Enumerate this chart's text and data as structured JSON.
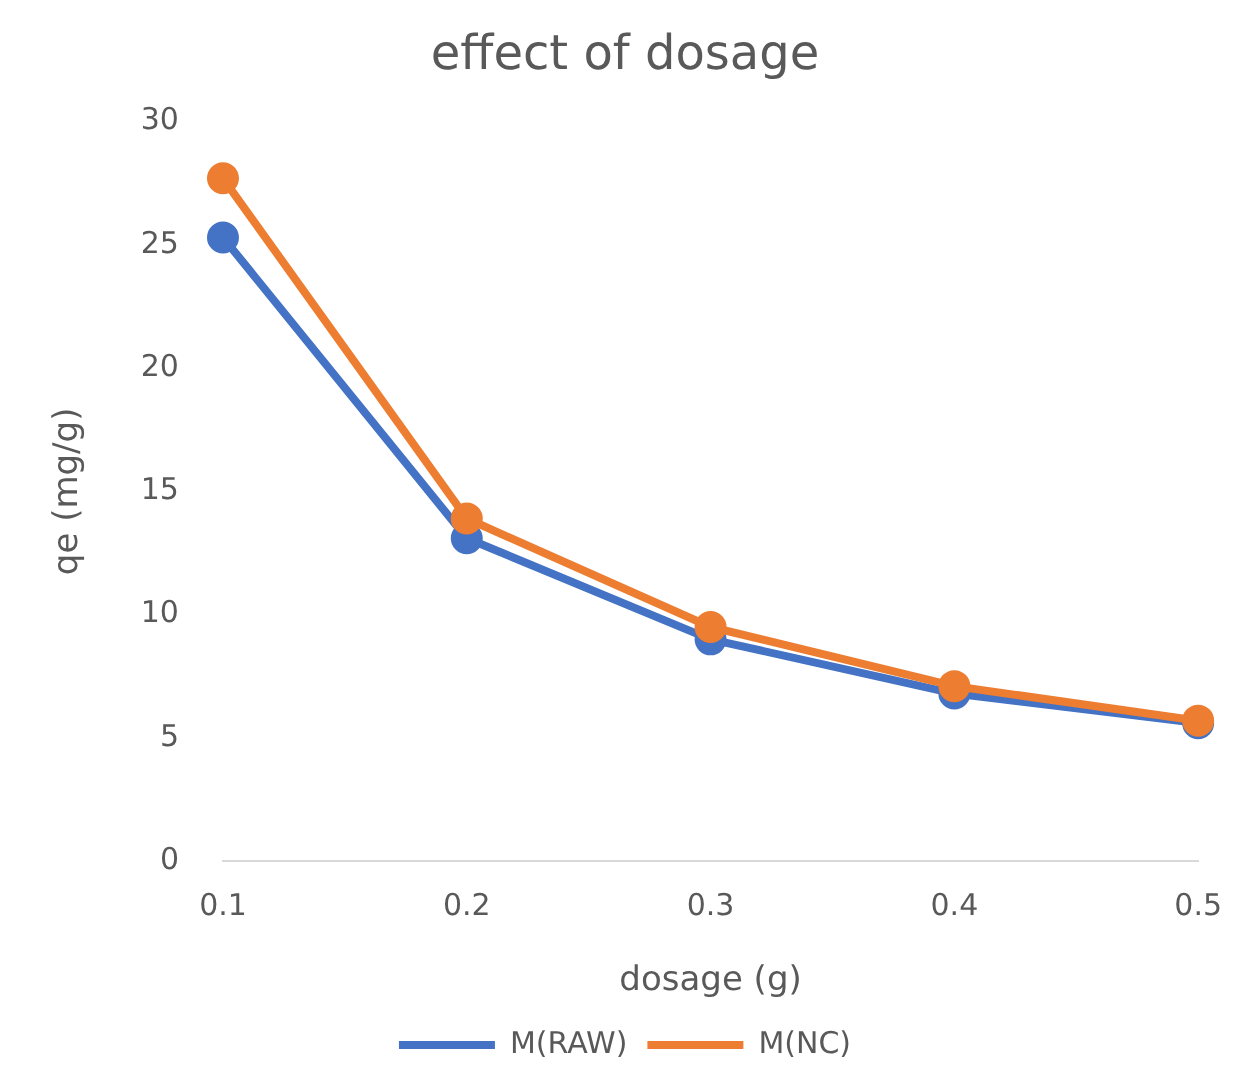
{
  "chart_data": {
    "type": "line",
    "title": "effect of dosage",
    "xlabel": "dosage (g)",
    "ylabel": "qe (mg/g)",
    "categories": [
      "0.1",
      "0.2",
      "0.3",
      "0.4",
      "0.5"
    ],
    "series": [
      {
        "name": "M(RAW)",
        "color": "#4472c4",
        "values": [
          25.3,
          13.1,
          9.0,
          6.8,
          5.6
        ]
      },
      {
        "name": "M(NC)",
        "color": "#ed7d31",
        "values": [
          27.7,
          13.9,
          9.5,
          7.1,
          5.7
        ]
      }
    ],
    "ylim": [
      0,
      30
    ],
    "yticks": [
      0,
      5,
      10,
      15,
      20,
      25,
      30
    ],
    "grid": false,
    "legend": "bottom",
    "marker": "circle",
    "line_style": "solid"
  }
}
